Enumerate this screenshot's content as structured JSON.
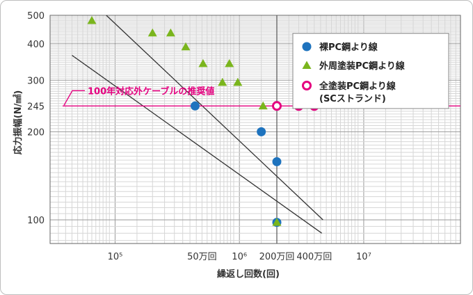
{
  "chart_data": {
    "type": "scatter",
    "title": "",
    "xlabel": "繰返し回数(回)",
    "ylabel": "応力振幅(N/㎟)",
    "xscale": "log",
    "yscale": "log",
    "xlim": [
      30000,
      60000000
    ],
    "ylim": [
      83,
      500
    ],
    "grid": true,
    "legend_position": "top-right",
    "x_ticks": [
      {
        "value": 100000,
        "label": "10⁵"
      },
      {
        "value": 500000,
        "label": "50万回"
      },
      {
        "value": 1000000,
        "label": "10⁶"
      },
      {
        "value": 2000000,
        "label": "200万回"
      },
      {
        "value": 4000000,
        "label": "400万回"
      },
      {
        "value": 10000000,
        "label": "10⁷"
      }
    ],
    "y_ticks": [
      {
        "value": 100,
        "label": "100"
      },
      {
        "value": 200,
        "label": "200"
      },
      {
        "value": 245,
        "label": "245"
      },
      {
        "value": 300,
        "label": "300"
      },
      {
        "value": 400,
        "label": "400"
      },
      {
        "value": 500,
        "label": "500"
      }
    ],
    "series": [
      {
        "name": "裸PC鋼より線",
        "marker": "circle",
        "color": "#1e73be",
        "points": [
          {
            "x": 440000,
            "y": 245
          },
          {
            "x": 1500000,
            "y": 200
          },
          {
            "x": 2000000,
            "y": 158
          },
          {
            "x": 2000000,
            "y": 98
          }
        ]
      },
      {
        "name": "外周塗装PC鋼より線",
        "marker": "triangle",
        "color": "#7ab51d",
        "points": [
          {
            "x": 65000,
            "y": 480
          },
          {
            "x": 200000,
            "y": 435
          },
          {
            "x": 280000,
            "y": 435
          },
          {
            "x": 370000,
            "y": 390
          },
          {
            "x": 510000,
            "y": 342
          },
          {
            "x": 730000,
            "y": 295
          },
          {
            "x": 830000,
            "y": 342
          },
          {
            "x": 970000,
            "y": 295
          },
          {
            "x": 1550000,
            "y": 245
          },
          {
            "x": 2000000,
            "y": 98
          }
        ]
      },
      {
        "name": "全塗装PC鋼より線\n(SCストランド)",
        "marker": "ring",
        "color": "#e4007f",
        "points": [
          {
            "x": 2000000,
            "y": 245
          },
          {
            "x": 3000000,
            "y": 245
          },
          {
            "x": 4000000,
            "y": 245
          }
        ]
      }
    ],
    "lines": [
      {
        "x1": 85000,
        "y1": 500,
        "x2": 4700000,
        "y2": 100
      },
      {
        "x1": 45000,
        "y1": 365,
        "x2": 4600000,
        "y2": 90
      }
    ],
    "reference": {
      "y": 245,
      "label": "100年対応外ケーブルの推奨値",
      "color": "#e4007f"
    },
    "vertical_marker_x": 2000000
  }
}
